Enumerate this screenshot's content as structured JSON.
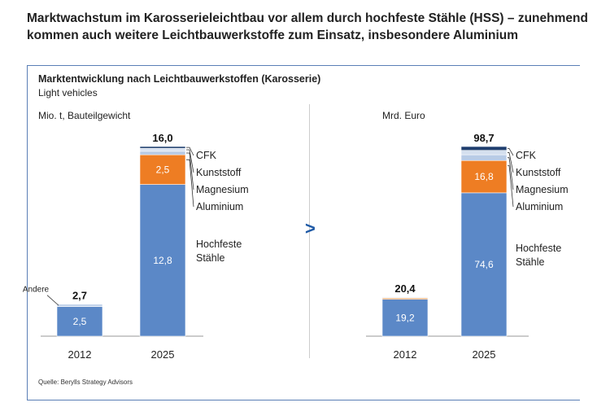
{
  "headline": "Marktwachstum im Karosserieleichtbau vor allem durch hochfeste Stähle (HSS) – zunehmend kommen auch weitere Leichtbauwerkstoffe zum Einsatz, insbesondere Aluminium",
  "subtitle": "Marktentwicklung nach Leichtbauwerkstoffen (Karosserie)",
  "subsubtitle": "Light vehicles",
  "arrow_symbol": ">",
  "source": "Quelle: Berylls Strategy Advisors",
  "colors": {
    "hss": "#5b88c7",
    "aluminium": "#ee7d23",
    "magnesium": "#b8cbe6",
    "kunststoff": "#d5e0ef",
    "cfk": "#1f3e6e",
    "andere": "#c2d3ea",
    "frame": "#5a7fb6",
    "arrow": "#1f5aa6"
  },
  "chart_data": [
    {
      "type": "bar",
      "stacked": true,
      "unit_label": "Mio. t, Bauteilgewicht",
      "categories": [
        "2012",
        "2025"
      ],
      "ylim": [
        0,
        16.0
      ],
      "totals": [
        "2,7",
        "16,0"
      ],
      "series": [
        {
          "key": "hss",
          "name": "Hochfeste Stähle",
          "values": [
            2.5,
            12.8
          ],
          "labels": [
            "2,5",
            "12,8"
          ]
        },
        {
          "key": "aluminium",
          "name": "Aluminium",
          "values": [
            0.0,
            2.5
          ],
          "labels": [
            "",
            "2,5"
          ]
        },
        {
          "key": "magnesium",
          "name": "Magnesium",
          "values": [
            0.0,
            0.3
          ],
          "labels": [
            "",
            ""
          ]
        },
        {
          "key": "kunststoff",
          "name": "Kunststoff",
          "values": [
            0.0,
            0.25
          ],
          "labels": [
            "",
            ""
          ]
        },
        {
          "key": "cfk",
          "name": "CFK",
          "values": [
            0.0,
            0.15
          ],
          "labels": [
            "",
            ""
          ]
        },
        {
          "key": "andere",
          "name": "Andere",
          "values": [
            0.2,
            0.0
          ],
          "labels": [
            "",
            ""
          ]
        }
      ],
      "legend": [
        "CFK",
        "Kunststoff",
        "Magnesium",
        "Aluminium"
      ],
      "hss_label_lines": [
        "Hochfeste",
        "Stähle"
      ],
      "andere_label": "Andere"
    },
    {
      "type": "bar",
      "stacked": true,
      "unit_label": "Mrd. Euro",
      "categories": [
        "2012",
        "2025"
      ],
      "ylim": [
        0,
        98.7
      ],
      "totals": [
        "20,4",
        "98,7"
      ],
      "series": [
        {
          "key": "hss",
          "name": "Hochfeste Stähle",
          "values": [
            19.2,
            74.6
          ],
          "labels": [
            "19,2",
            "74,6"
          ]
        },
        {
          "key": "aluminium",
          "name": "Aluminium",
          "values": [
            0.6,
            16.8
          ],
          "labels": [
            "",
            "16,8"
          ]
        },
        {
          "key": "magnesium",
          "name": "Magnesium",
          "values": [
            0.3,
            3.0
          ],
          "labels": [
            "",
            ""
          ]
        },
        {
          "key": "kunststoff",
          "name": "Kunststoff",
          "values": [
            0.2,
            2.3
          ],
          "labels": [
            "",
            ""
          ]
        },
        {
          "key": "cfk",
          "name": "CFK",
          "values": [
            0.1,
            2.0
          ],
          "labels": [
            "",
            ""
          ]
        }
      ],
      "legend": [
        "CFK",
        "Kunststoff",
        "Magnesium",
        "Aluminium"
      ],
      "hss_label_lines": [
        "Hochfeste",
        "Stähle"
      ]
    }
  ]
}
